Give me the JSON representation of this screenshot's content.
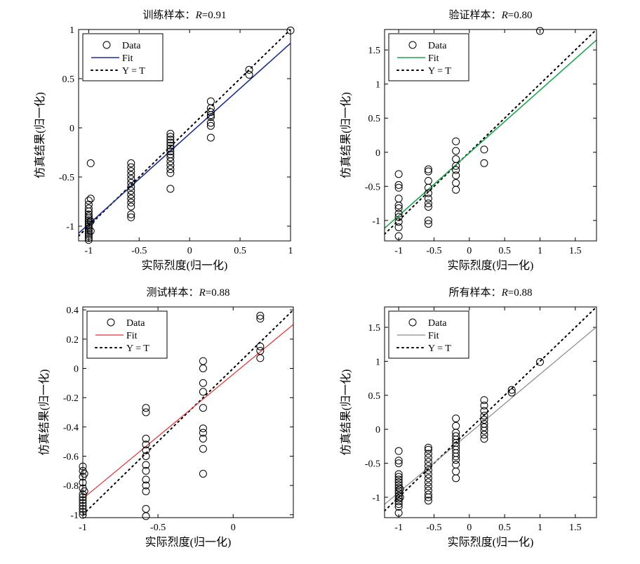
{
  "charts": [
    {
      "type": "scatter",
      "title": "训练样本：",
      "r_label": "R",
      "r_value": "=0.91",
      "xlabel": "实际烈度(归一化)",
      "ylabel": "仿真结果(归一化)",
      "xlim": [
        -1.1,
        1.0
      ],
      "ylim": [
        -1.15,
        1.0
      ],
      "xticks": [
        -1,
        -0.5,
        0,
        0.5,
        1
      ],
      "xticklabels": [
        "-1",
        "-0.5",
        "0",
        "0.5",
        "1"
      ],
      "yticks": [
        -1,
        -0.5,
        0,
        0.5,
        1
      ],
      "yticklabels": [
        "-1",
        "-0.5",
        "0",
        "0.5",
        "1"
      ],
      "fit": {
        "slope": 0.92,
        "intercept": -0.06
      },
      "fit_color": "#1f2f8f",
      "fit_width": 1.6,
      "legend": [
        "Data",
        "Fit",
        "Y = T"
      ],
      "legend_position": "top-left",
      "points": [
        [
          -1,
          -0.74
        ],
        [
          -1,
          -0.78
        ],
        [
          -1,
          -0.82
        ],
        [
          -1,
          -0.85
        ],
        [
          -1,
          -0.88
        ],
        [
          -1,
          -0.9
        ],
        [
          -1,
          -0.92
        ],
        [
          -1,
          -0.94
        ],
        [
          -1,
          -0.96
        ],
        [
          -1,
          -0.98
        ],
        [
          -1,
          -1.0
        ],
        [
          -1,
          -1.02
        ],
        [
          -1,
          -1.04
        ],
        [
          -1,
          -1.06
        ],
        [
          -1,
          -1.08
        ],
        [
          -1,
          -1.1
        ],
        [
          -1,
          -1.12
        ],
        [
          -1,
          -1.14
        ],
        [
          -0.98,
          -0.36
        ],
        [
          -0.98,
          -0.72
        ],
        [
          -0.98,
          -0.95
        ],
        [
          -0.98,
          -1.05
        ],
        [
          -0.58,
          -0.36
        ],
        [
          -0.58,
          -0.4
        ],
        [
          -0.58,
          -0.44
        ],
        [
          -0.58,
          -0.48
        ],
        [
          -0.58,
          -0.52
        ],
        [
          -0.58,
          -0.56
        ],
        [
          -0.58,
          -0.6
        ],
        [
          -0.58,
          -0.64
        ],
        [
          -0.58,
          -0.68
        ],
        [
          -0.58,
          -0.72
        ],
        [
          -0.58,
          -0.76
        ],
        [
          -0.58,
          -0.8
        ],
        [
          -0.58,
          -0.88
        ],
        [
          -0.58,
          -0.91
        ],
        [
          -0.19,
          -0.06
        ],
        [
          -0.19,
          -0.09
        ],
        [
          -0.19,
          -0.12
        ],
        [
          -0.19,
          -0.15
        ],
        [
          -0.19,
          -0.18
        ],
        [
          -0.19,
          -0.21
        ],
        [
          -0.19,
          -0.24
        ],
        [
          -0.19,
          -0.27
        ],
        [
          -0.19,
          -0.3
        ],
        [
          -0.19,
          -0.34
        ],
        [
          -0.19,
          -0.38
        ],
        [
          -0.19,
          -0.42
        ],
        [
          -0.19,
          -0.46
        ],
        [
          -0.19,
          -0.62
        ],
        [
          0.21,
          0.27
        ],
        [
          0.21,
          0.2
        ],
        [
          0.21,
          0.16
        ],
        [
          0.21,
          0.13
        ],
        [
          0.21,
          0.11
        ],
        [
          0.21,
          0.05
        ],
        [
          0.21,
          0.02
        ],
        [
          0.21,
          -0.1
        ],
        [
          0.59,
          0.59
        ],
        [
          0.59,
          0.54
        ],
        [
          1.0,
          0.99
        ]
      ]
    },
    {
      "type": "scatter",
      "title": "验证样本：",
      "r_label": "R",
      "r_value": "=0.80",
      "xlabel": "实际烈度(归一化)",
      "ylabel": "仿真结果(归一化)",
      "xlim": [
        -1.2,
        1.8
      ],
      "ylim": [
        -1.3,
        1.8
      ],
      "xticks": [
        -1,
        -0.5,
        0,
        0.5,
        1,
        1.5
      ],
      "xticklabels": [
        "-1",
        "-0.5",
        "0",
        "0.5",
        "1",
        "1.5"
      ],
      "yticks": [
        -1,
        -0.5,
        0,
        0.5,
        1,
        1.5
      ],
      "yticklabels": [
        "-1",
        "-0.5",
        "0",
        "0.5",
        "1",
        "1.5"
      ],
      "fit": {
        "slope": 0.92,
        "intercept": -0.01
      },
      "fit_color": "#1aa64a",
      "fit_width": 1.6,
      "legend": [
        "Data",
        "Fit",
        "Y = T"
      ],
      "legend_position": "top-left",
      "points": [
        [
          -1,
          -0.32
        ],
        [
          -1,
          -0.48
        ],
        [
          -1,
          -0.52
        ],
        [
          -1,
          -0.68
        ],
        [
          -1,
          -0.78
        ],
        [
          -1,
          -0.82
        ],
        [
          -1,
          -0.9
        ],
        [
          -1,
          -0.95
        ],
        [
          -1,
          -1.02
        ],
        [
          -1,
          -1.1
        ],
        [
          -1,
          -1.23
        ],
        [
          -0.58,
          -0.25
        ],
        [
          -0.58,
          -0.28
        ],
        [
          -0.58,
          -0.42
        ],
        [
          -0.58,
          -0.52
        ],
        [
          -0.58,
          -0.6
        ],
        [
          -0.58,
          -0.68
        ],
        [
          -0.58,
          -0.75
        ],
        [
          -0.58,
          -0.8
        ],
        [
          -0.58,
          -1.0
        ],
        [
          -0.58,
          -1.05
        ],
        [
          -0.19,
          0.16
        ],
        [
          -0.19,
          0.02
        ],
        [
          -0.19,
          -0.1
        ],
        [
          -0.19,
          -0.2
        ],
        [
          -0.19,
          -0.26
        ],
        [
          -0.19,
          -0.34
        ],
        [
          -0.19,
          -0.45
        ],
        [
          -0.19,
          -0.55
        ],
        [
          0.21,
          0.04
        ],
        [
          0.21,
          -0.16
        ],
        [
          1.0,
          1.78
        ]
      ]
    },
    {
      "type": "scatter",
      "title": "测试样本：",
      "r_label": "R",
      "r_value": "=0.88",
      "xlabel": "实际烈度(归一化)",
      "ylabel": "仿真结果(归一化)",
      "xlim": [
        -1.0,
        0.4
      ],
      "ylim": [
        -1.02,
        0.42
      ],
      "xticks": [
        -1,
        -0.5,
        0
      ],
      "xticklabels": [
        "-1",
        "-0.5",
        "0"
      ],
      "yticks": [
        -1,
        -0.8,
        -0.6,
        -0.4,
        -0.2,
        0,
        0.2,
        0.4
      ],
      "yticklabels": [
        "-1",
        "-0.8",
        "-0.6",
        "-0.4",
        "-0.2",
        "0",
        "0.2",
        "0.4"
      ],
      "fit": {
        "slope": 0.85,
        "intercept": -0.04
      },
      "fit_color": "#e03030",
      "fit_width": 1.2,
      "legend": [
        "Data",
        "Fit",
        "Y = T"
      ],
      "legend_position": "top-left",
      "points": [
        [
          -1,
          -0.67
        ],
        [
          -1,
          -0.7
        ],
        [
          -1,
          -0.74
        ],
        [
          -1,
          -0.78
        ],
        [
          -1,
          -0.82
        ],
        [
          -1,
          -0.86
        ],
        [
          -1,
          -0.88
        ],
        [
          -1,
          -0.9
        ],
        [
          -1,
          -0.92
        ],
        [
          -1,
          -0.94
        ],
        [
          -1,
          -0.96
        ],
        [
          -1,
          -0.98
        ],
        [
          -1,
          -1.0
        ],
        [
          -0.99,
          -0.72
        ],
        [
          -0.99,
          -0.84
        ],
        [
          -0.58,
          -0.27
        ],
        [
          -0.58,
          -0.3
        ],
        [
          -0.58,
          -0.48
        ],
        [
          -0.58,
          -0.52
        ],
        [
          -0.58,
          -0.56
        ],
        [
          -0.58,
          -0.6
        ],
        [
          -0.58,
          -0.66
        ],
        [
          -0.58,
          -0.7
        ],
        [
          -0.58,
          -0.76
        ],
        [
          -0.58,
          -0.8
        ],
        [
          -0.58,
          -0.84
        ],
        [
          -0.58,
          -0.96
        ],
        [
          -0.58,
          -1.01
        ],
        [
          -0.2,
          0.05
        ],
        [
          -0.2,
          0.0
        ],
        [
          -0.2,
          -0.1
        ],
        [
          -0.2,
          -0.16
        ],
        [
          -0.2,
          -0.27
        ],
        [
          -0.2,
          -0.41
        ],
        [
          -0.2,
          -0.44
        ],
        [
          -0.2,
          -0.48
        ],
        [
          -0.2,
          -0.55
        ],
        [
          -0.2,
          -0.72
        ],
        [
          0.18,
          0.36
        ],
        [
          0.18,
          0.34
        ],
        [
          0.18,
          0.15
        ],
        [
          0.18,
          0.12
        ],
        [
          0.18,
          0.07
        ]
      ]
    },
    {
      "type": "scatter",
      "title": "所有样本：",
      "r_label": "R",
      "r_value": "=0.88",
      "xlabel": "实际烈度(归一化)",
      "ylabel": "仿真结果(归一化)",
      "xlim": [
        -1.2,
        1.8
      ],
      "ylim": [
        -1.3,
        1.8
      ],
      "xticks": [
        -1,
        -0.5,
        0,
        0.5,
        1,
        1.5
      ],
      "xticklabels": [
        "-1",
        "-0.5",
        "0",
        "0.5",
        "1",
        "1.5"
      ],
      "yticks": [
        -1,
        -0.5,
        0,
        0.5,
        1,
        1.5
      ],
      "yticklabels": [
        "-1",
        "-0.5",
        "0",
        "0.5",
        "1",
        "1.5"
      ],
      "fit": {
        "slope": 0.87,
        "intercept": -0.06
      },
      "fit_color": "#8a8a8a",
      "fit_width": 1.2,
      "legend": [
        "Data",
        "Fit",
        "Y = T"
      ],
      "legend_position": "top-left",
      "points": [
        [
          -1,
          -0.32
        ],
        [
          -1,
          -0.46
        ],
        [
          -1,
          -0.5
        ],
        [
          -1,
          -0.66
        ],
        [
          -1,
          -0.7
        ],
        [
          -1,
          -0.74
        ],
        [
          -1,
          -0.78
        ],
        [
          -1,
          -0.82
        ],
        [
          -1,
          -0.86
        ],
        [
          -1,
          -0.9
        ],
        [
          -1,
          -0.94
        ],
        [
          -1,
          -0.98
        ],
        [
          -1,
          -1.02
        ],
        [
          -1,
          -1.06
        ],
        [
          -1,
          -1.1
        ],
        [
          -1,
          -1.14
        ],
        [
          -1,
          -1.23
        ],
        [
          -0.98,
          -0.88
        ],
        [
          -0.98,
          -1.0
        ],
        [
          -0.58,
          -0.27
        ],
        [
          -0.58,
          -0.3
        ],
        [
          -0.58,
          -0.36
        ],
        [
          -0.58,
          -0.42
        ],
        [
          -0.58,
          -0.48
        ],
        [
          -0.58,
          -0.54
        ],
        [
          -0.58,
          -0.6
        ],
        [
          -0.58,
          -0.66
        ],
        [
          -0.58,
          -0.72
        ],
        [
          -0.58,
          -0.78
        ],
        [
          -0.58,
          -0.84
        ],
        [
          -0.58,
          -0.9
        ],
        [
          -0.58,
          -0.96
        ],
        [
          -0.58,
          -1.0
        ],
        [
          -0.58,
          -1.05
        ],
        [
          -0.19,
          0.16
        ],
        [
          -0.19,
          0.05
        ],
        [
          -0.19,
          -0.05
        ],
        [
          -0.19,
          -0.1
        ],
        [
          -0.19,
          -0.15
        ],
        [
          -0.19,
          -0.2
        ],
        [
          -0.19,
          -0.25
        ],
        [
          -0.19,
          -0.3
        ],
        [
          -0.19,
          -0.35
        ],
        [
          -0.19,
          -0.4
        ],
        [
          -0.19,
          -0.45
        ],
        [
          -0.19,
          -0.52
        ],
        [
          -0.19,
          -0.62
        ],
        [
          -0.19,
          -0.72
        ],
        [
          0.21,
          0.43
        ],
        [
          0.21,
          0.35
        ],
        [
          0.21,
          0.27
        ],
        [
          0.21,
          0.2
        ],
        [
          0.21,
          0.14
        ],
        [
          0.21,
          0.08
        ],
        [
          0.21,
          0.03
        ],
        [
          0.21,
          -0.02
        ],
        [
          0.21,
          -0.08
        ],
        [
          0.21,
          -0.14
        ],
        [
          0.6,
          0.58
        ],
        [
          0.6,
          0.54
        ],
        [
          1.0,
          0.99
        ]
      ]
    }
  ]
}
